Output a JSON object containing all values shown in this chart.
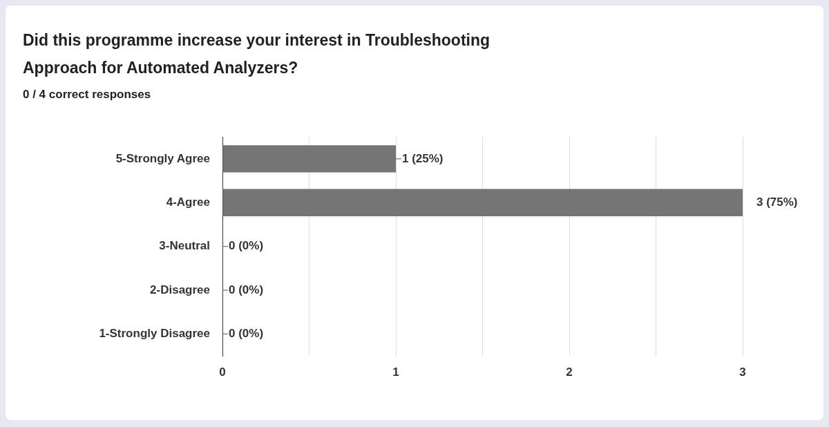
{
  "chart_data": {
    "type": "bar",
    "orientation": "horizontal",
    "title": "Did this programme increase your interest in Troubleshooting Approach for Automated Analyzers?",
    "subtitle": "0 / 4 correct responses",
    "categories": [
      "5-Strongly Agree",
      "4-Agree",
      "3-Neutral",
      "2-Disagree",
      "1-Strongly Disagree"
    ],
    "values": [
      1,
      3,
      0,
      0,
      0
    ],
    "color": "#757575",
    "value_labels": [
      "1 (25%)",
      "3 (75%)",
      "0 (0%)",
      "0 (0%)",
      "0 (0%)"
    ],
    "xlim": [
      0,
      3
    ],
    "xticks": [
      0,
      {
        "value": 0.5,
        "label": null
      },
      1,
      {
        "value": 1.5,
        "label": null
      },
      2,
      {
        "value": 2.5,
        "label": null
      },
      3
    ],
    "grid": "x",
    "legend": false
  }
}
